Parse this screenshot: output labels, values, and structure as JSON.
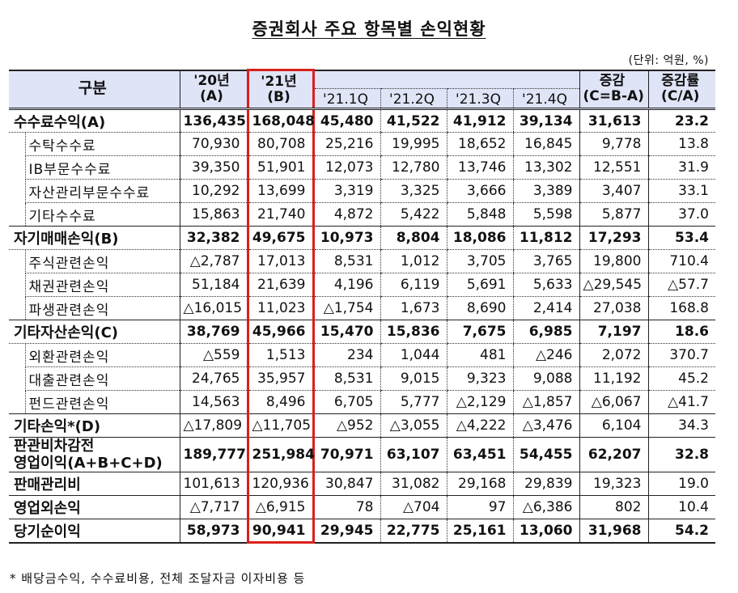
{
  "title": "증권회사 주요 항목별 손익현황",
  "unit": "(단위: 억원, %)",
  "header": {
    "category": "구분",
    "y20_line1": "'20년",
    "y20_line2": "(A)",
    "y21_line1": "'21년",
    "y21_line2": "(B)",
    "quarters": [
      "'21.1Q",
      "'21.2Q",
      "'21.3Q",
      "'21.4Q"
    ],
    "change_line1": "증감",
    "change_line2": "(C=B-A)",
    "rate_line1": "증감률",
    "rate_line2": "(C/A)"
  },
  "highlight_color": "#d9201c",
  "header_bg": "#dfe4f6",
  "rows": [
    {
      "label": "수수료수익(A)",
      "level": 0,
      "values": [
        "136,435",
        "168,048",
        "45,480",
        "41,522",
        "41,912",
        "39,134",
        "31,613",
        "23.2"
      ]
    },
    {
      "label": "수탁수수료",
      "level": 1,
      "values": [
        "70,930",
        "80,708",
        "25,216",
        "19,995",
        "18,652",
        "16,845",
        "9,778",
        "13.8"
      ]
    },
    {
      "label": "IB부문수수료",
      "level": 1,
      "values": [
        "39,350",
        "51,901",
        "12,073",
        "12,780",
        "13,746",
        "13,302",
        "12,551",
        "31.9"
      ]
    },
    {
      "label": "자산관리부문수수료",
      "level": 1,
      "values": [
        "10,292",
        "13,699",
        "3,319",
        "3,325",
        "3,666",
        "3,389",
        "3,407",
        "33.1"
      ]
    },
    {
      "label": "기타수수료",
      "level": 1,
      "values": [
        "15,863",
        "21,740",
        "4,872",
        "5,422",
        "5,848",
        "5,598",
        "5,877",
        "37.0"
      ]
    },
    {
      "label": "자기매매손익(B)",
      "level": 0,
      "values": [
        "32,382",
        "49,675",
        "10,973",
        "8,804",
        "18,086",
        "11,812",
        "17,293",
        "53.4"
      ]
    },
    {
      "label": "주식관련손익",
      "level": 1,
      "values": [
        "△2,787",
        "17,013",
        "8,531",
        "1,012",
        "3,705",
        "3,765",
        "19,800",
        "710.4"
      ]
    },
    {
      "label": "채권관련손익",
      "level": 1,
      "values": [
        "51,184",
        "21,639",
        "4,196",
        "6,119",
        "5,691",
        "5,633",
        "△29,545",
        "△57.7"
      ]
    },
    {
      "label": "파생관련손익",
      "level": 1,
      "values": [
        "△16,015",
        "11,023",
        "△1,754",
        "1,673",
        "8,690",
        "2,414",
        "27,038",
        "168.8"
      ]
    },
    {
      "label": "기타자산손익(C)",
      "level": 0,
      "values": [
        "38,769",
        "45,966",
        "15,470",
        "15,836",
        "7,675",
        "6,985",
        "7,197",
        "18.6"
      ]
    },
    {
      "label": "외환관련손익",
      "level": 1,
      "values": [
        "△559",
        "1,513",
        "234",
        "1,044",
        "481",
        "△246",
        "2,072",
        "370.7"
      ]
    },
    {
      "label": "대출관련손익",
      "level": 1,
      "values": [
        "24,765",
        "35,957",
        "8,531",
        "9,015",
        "9,323",
        "9,088",
        "11,192",
        "45.2"
      ]
    },
    {
      "label": "펀드관련손익",
      "level": 1,
      "values": [
        "14,563",
        "8,496",
        "6,705",
        "5,777",
        "△2,129",
        "△1,857",
        "△6,067",
        "△41.7"
      ]
    },
    {
      "label": "기타손익*(D)",
      "level": 2,
      "values": [
        "△17,809",
        "△11,705",
        "△952",
        "△3,055",
        "△4,222",
        "△3,476",
        "6,104",
        "34.3"
      ]
    },
    {
      "label": "판관비차감전",
      "label2": "영업이익(A+B+C+D)",
      "level": 0,
      "values": [
        "189,777",
        "251,984",
        "70,971",
        "63,107",
        "63,451",
        "54,455",
        "62,207",
        "32.8"
      ]
    },
    {
      "label": "판매관리비",
      "level": 2,
      "values": [
        "101,613",
        "120,936",
        "30,847",
        "31,082",
        "29,168",
        "29,839",
        "19,323",
        "19.0"
      ]
    },
    {
      "label": "영업외손익",
      "level": 2,
      "values": [
        "△7,717",
        "△6,915",
        "78",
        "△704",
        "97",
        "△6,386",
        "802",
        "10.4"
      ]
    },
    {
      "label": "당기순이익",
      "level": 0,
      "values": [
        "58,973",
        "90,941",
        "29,945",
        "22,775",
        "25,161",
        "13,060",
        "31,968",
        "54.2"
      ]
    }
  ],
  "footnote": "* 배당금수익, 수수료비용, 전체 조달자금 이자비용 등"
}
